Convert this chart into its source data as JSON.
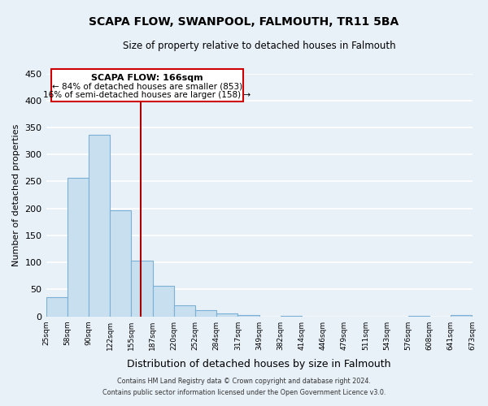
{
  "title": "SCAPA FLOW, SWANPOOL, FALMOUTH, TR11 5BA",
  "subtitle": "Size of property relative to detached houses in Falmouth",
  "xlabel": "Distribution of detached houses by size in Falmouth",
  "ylabel": "Number of detached properties",
  "bar_values": [
    36,
    256,
    336,
    197,
    104,
    57,
    21,
    11,
    5,
    2,
    0,
    1,
    0,
    0,
    0,
    0,
    0,
    1,
    0,
    2
  ],
  "bin_labels": [
    "25sqm",
    "58sqm",
    "90sqm",
    "122sqm",
    "155sqm",
    "187sqm",
    "220sqm",
    "252sqm",
    "284sqm",
    "317sqm",
    "349sqm",
    "382sqm",
    "414sqm",
    "446sqm",
    "479sqm",
    "511sqm",
    "543sqm",
    "576sqm",
    "608sqm",
    "641sqm",
    "673sqm"
  ],
  "bar_color": "#c8dff0",
  "bar_edge_color": "#7bafd4",
  "ylim": [
    0,
    450
  ],
  "yticks": [
    0,
    50,
    100,
    150,
    200,
    250,
    300,
    350,
    400,
    450
  ],
  "property_line_x": 4.45,
  "property_line_label": "SCAPA FLOW: 166sqm",
  "annotation_line1": "← 84% of detached houses are smaller (853)",
  "annotation_line2": "16% of semi-detached houses are larger (158) →",
  "annotation_box_color": "#ffffff",
  "annotation_box_edge": "#cc0000",
  "vline_color": "#aa0000",
  "footer1": "Contains HM Land Registry data © Crown copyright and database right 2024.",
  "footer2": "Contains public sector information licensed under the Open Government Licence v3.0.",
  "background_color": "#e8f0f8",
  "grid_color": "#ffffff",
  "num_bins": 20
}
